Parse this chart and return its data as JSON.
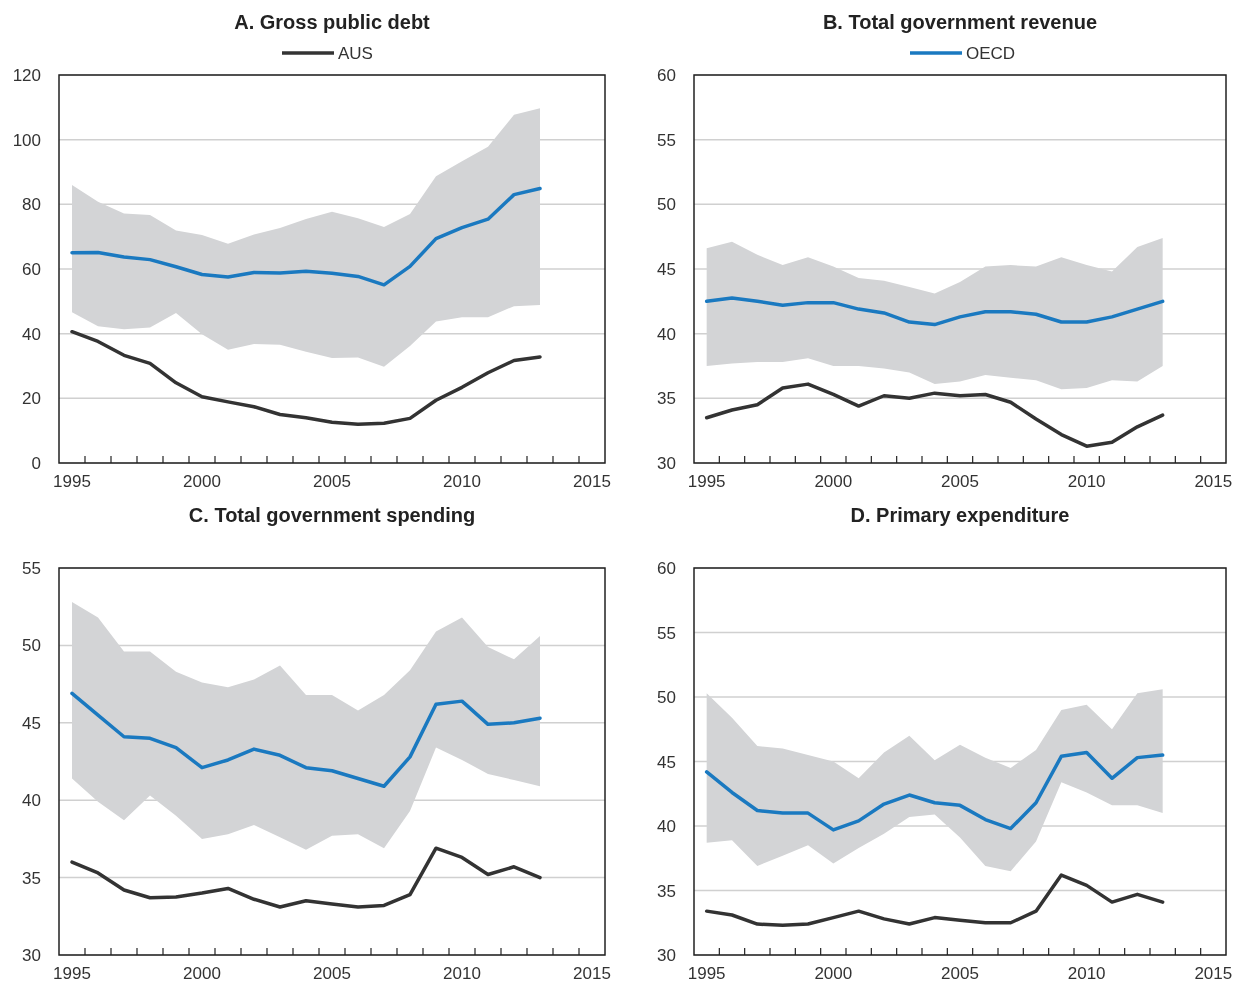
{
  "chart_data": [
    {
      "type": "line",
      "title": "A. Gross public debt",
      "x": [
        1995,
        1996,
        1997,
        1998,
        1999,
        2000,
        2001,
        2002,
        2003,
        2004,
        2005,
        2006,
        2007,
        2008,
        2009,
        2010,
        2011,
        2012,
        2013
      ],
      "xlim": [
        1994.5,
        2015.5
      ],
      "xticks": [
        1995,
        {
          "value": 1995.5,
          "label": null
        },
        {
          "value": 1996.5,
          "label": null
        },
        {
          "value": 1997.5,
          "label": null
        },
        {
          "value": 1998.5,
          "label": null
        },
        {
          "value": 1999.5,
          "label": null
        },
        2000,
        {
          "value": 2000.5,
          "label": null
        },
        {
          "value": 2001.5,
          "label": null
        },
        {
          "value": 2002.5,
          "label": null
        },
        {
          "value": 2003.5,
          "label": null
        },
        {
          "value": 2004.5,
          "label": null
        },
        2005,
        {
          "value": 2005.5,
          "label": null
        },
        {
          "value": 2006.5,
          "label": null
        },
        {
          "value": 2007.5,
          "label": null
        },
        {
          "value": 2008.5,
          "label": null
        },
        {
          "value": 2009.5,
          "label": null
        },
        2010,
        {
          "value": 2010.5,
          "label": null
        },
        {
          "value": 2011.5,
          "label": null
        },
        {
          "value": 2012.5,
          "label": null
        },
        {
          "value": 2013.5,
          "label": null
        },
        {
          "value": 2014.5,
          "label": null
        },
        2015
      ],
      "ylim": [
        0,
        120
      ],
      "yticks": [
        0,
        20,
        40,
        60,
        80,
        100,
        120
      ],
      "grid": "y",
      "legend": "top",
      "series": [
        {
          "color": "#1a79c0",
          "values": [
            65,
            65.1,
            63.7,
            62.9,
            60.7,
            58.3,
            57.5,
            58.9,
            58.8,
            59.3,
            58.7,
            57.7,
            55.1,
            60.8,
            69.4,
            72.8,
            75.4,
            83,
            84.9
          ],
          "lower": [
            46.6,
            42.3,
            41.4,
            41.9,
            46.4,
            39.8,
            35,
            36.8,
            36.6,
            34.4,
            32.5,
            32.6,
            29.8,
            36.2,
            43.8,
            45.1,
            45.1,
            48.5,
            48.9
          ],
          "upper": [
            86,
            80.8,
            77.2,
            76.7,
            71.9,
            70.5,
            67.8,
            70.7,
            72.7,
            75.5,
            77.7,
            75.7,
            73,
            77,
            88.7,
            93.3,
            97.8,
            107.7,
            109.7
          ]
        },
        {
          "name": "AUS",
          "color": "#333333",
          "values": [
            40.6,
            37.6,
            33.3,
            30.8,
            24.8,
            20.5,
            18.9,
            17.4,
            15,
            14,
            12.6,
            12,
            12.3,
            13.8,
            19.4,
            23.4,
            27.9,
            31.7,
            32.8
          ]
        }
      ]
    },
    {
      "type": "line",
      "title": "B. Total government revenue",
      "x": [
        1995,
        1996,
        1997,
        1998,
        1999,
        2000,
        2001,
        2002,
        2003,
        2004,
        2005,
        2006,
        2007,
        2008,
        2009,
        2010,
        2011,
        2012,
        2013
      ],
      "xlim": [
        1994.5,
        2015.5
      ],
      "xticks": [
        1995,
        {
          "value": 1995.5,
          "label": null
        },
        {
          "value": 1996.5,
          "label": null
        },
        {
          "value": 1997.5,
          "label": null
        },
        {
          "value": 1998.5,
          "label": null
        },
        {
          "value": 1999.5,
          "label": null
        },
        2000,
        {
          "value": 2000.5,
          "label": null
        },
        {
          "value": 2001.5,
          "label": null
        },
        {
          "value": 2002.5,
          "label": null
        },
        {
          "value": 2003.5,
          "label": null
        },
        {
          "value": 2004.5,
          "label": null
        },
        2005,
        {
          "value": 2005.5,
          "label": null
        },
        {
          "value": 2006.5,
          "label": null
        },
        {
          "value": 2007.5,
          "label": null
        },
        {
          "value": 2008.5,
          "label": null
        },
        {
          "value": 2009.5,
          "label": null
        },
        2010,
        {
          "value": 2010.5,
          "label": null
        },
        {
          "value": 2011.5,
          "label": null
        },
        {
          "value": 2012.5,
          "label": null
        },
        {
          "value": 2013.5,
          "label": null
        },
        {
          "value": 2014.5,
          "label": null
        },
        2015
      ],
      "ylim": [
        30,
        60
      ],
      "yticks": [
        30,
        35,
        40,
        45,
        50,
        55,
        60
      ],
      "grid": "y",
      "legend": "top",
      "series": [
        {
          "name": "OECD",
          "color": "#1a79c0",
          "values": [
            42.5,
            42.75,
            42.5,
            42.2,
            42.4,
            42.4,
            41.9,
            41.6,
            40.9,
            40.7,
            41.3,
            41.7,
            41.7,
            41.5,
            40.9,
            40.9,
            41.3,
            41.9,
            42.5
          ],
          "lower": [
            37.5,
            37.7,
            37.8,
            37.8,
            38.1,
            37.5,
            37.5,
            37.3,
            37,
            36.1,
            36.3,
            36.8,
            36.6,
            36.4,
            35.7,
            35.8,
            36.4,
            36.3,
            37.5
          ],
          "upper": [
            46.6,
            47.1,
            46.1,
            45.3,
            45.9,
            45.2,
            44.3,
            44.1,
            43.6,
            43.1,
            44,
            45.2,
            45.3,
            45.2,
            45.9,
            45.3,
            44.8,
            46.7,
            47.4
          ]
        },
        {
          "color": "#333333",
          "values": [
            33.5,
            34.1,
            34.5,
            35.8,
            36.1,
            35.3,
            34.4,
            35.2,
            35,
            35.4,
            35.2,
            35.3,
            34.7,
            33.4,
            32.2,
            31.3,
            31.6,
            32.8,
            33.7
          ]
        }
      ]
    },
    {
      "type": "line",
      "title": "C. Total government spending",
      "x": [
        1995,
        1996,
        1997,
        1998,
        1999,
        2000,
        2001,
        2002,
        2003,
        2004,
        2005,
        2006,
        2007,
        2008,
        2009,
        2010,
        2011,
        2012,
        2013
      ],
      "xlim": [
        1994.5,
        2015.5
      ],
      "xticks": [
        1995,
        {
          "value": 1995.5,
          "label": null
        },
        {
          "value": 1996.5,
          "label": null
        },
        {
          "value": 1997.5,
          "label": null
        },
        {
          "value": 1998.5,
          "label": null
        },
        {
          "value": 1999.5,
          "label": null
        },
        2000,
        {
          "value": 2000.5,
          "label": null
        },
        {
          "value": 2001.5,
          "label": null
        },
        {
          "value": 2002.5,
          "label": null
        },
        {
          "value": 2003.5,
          "label": null
        },
        {
          "value": 2004.5,
          "label": null
        },
        2005,
        {
          "value": 2005.5,
          "label": null
        },
        {
          "value": 2006.5,
          "label": null
        },
        {
          "value": 2007.5,
          "label": null
        },
        {
          "value": 2008.5,
          "label": null
        },
        {
          "value": 2009.5,
          "label": null
        },
        2010,
        {
          "value": 2010.5,
          "label": null
        },
        {
          "value": 2011.5,
          "label": null
        },
        {
          "value": 2012.5,
          "label": null
        },
        {
          "value": 2013.5,
          "label": null
        },
        {
          "value": 2014.5,
          "label": null
        },
        2015
      ],
      "ylim": [
        30,
        55
      ],
      "yticks": [
        30,
        35,
        40,
        45,
        50,
        55
      ],
      "grid": "y",
      "series": [
        {
          "color": "#1a79c0",
          "values": [
            46.9,
            45.5,
            44.1,
            44,
            43.4,
            42.1,
            42.6,
            43.3,
            42.9,
            42.1,
            41.9,
            41.4,
            40.9,
            42.8,
            46.2,
            46.4,
            44.9,
            45,
            45.3
          ],
          "lower": [
            41.4,
            39.9,
            38.7,
            40.3,
            39,
            37.5,
            37.8,
            38.4,
            37.6,
            36.8,
            37.7,
            37.8,
            36.9,
            39.3,
            43.4,
            42.6,
            41.7,
            41.3,
            40.9
          ],
          "upper": [
            52.8,
            51.8,
            49.6,
            49.6,
            48.3,
            47.6,
            47.3,
            47.8,
            48.7,
            46.8,
            46.8,
            45.8,
            46.8,
            48.4,
            50.9,
            51.8,
            49.9,
            49.1,
            50.6
          ]
        },
        {
          "color": "#333333",
          "values": [
            36,
            35.3,
            34.2,
            33.7,
            33.75,
            34,
            34.3,
            33.6,
            33.1,
            33.5,
            33.3,
            33.1,
            33.2,
            33.9,
            36.9,
            36.3,
            35.2,
            35.7,
            35
          ]
        }
      ]
    },
    {
      "type": "line",
      "title": "D. Primary expenditure",
      "x": [
        1995,
        1996,
        1997,
        1998,
        1999,
        2000,
        2001,
        2002,
        2003,
        2004,
        2005,
        2006,
        2007,
        2008,
        2009,
        2010,
        2011,
        2012,
        2013
      ],
      "xlim": [
        1994.5,
        2015.5
      ],
      "xticks": [
        1995,
        {
          "value": 1995.5,
          "label": null
        },
        {
          "value": 1996.5,
          "label": null
        },
        {
          "value": 1997.5,
          "label": null
        },
        {
          "value": 1998.5,
          "label": null
        },
        {
          "value": 1999.5,
          "label": null
        },
        2000,
        {
          "value": 2000.5,
          "label": null
        },
        {
          "value": 2001.5,
          "label": null
        },
        {
          "value": 2002.5,
          "label": null
        },
        {
          "value": 2003.5,
          "label": null
        },
        {
          "value": 2004.5,
          "label": null
        },
        2005,
        {
          "value": 2005.5,
          "label": null
        },
        {
          "value": 2006.5,
          "label": null
        },
        {
          "value": 2007.5,
          "label": null
        },
        {
          "value": 2008.5,
          "label": null
        },
        {
          "value": 2009.5,
          "label": null
        },
        2010,
        {
          "value": 2010.5,
          "label": null
        },
        {
          "value": 2011.5,
          "label": null
        },
        {
          "value": 2012.5,
          "label": null
        },
        {
          "value": 2013.5,
          "label": null
        },
        {
          "value": 2014.5,
          "label": null
        },
        2015
      ],
      "ylim": [
        30,
        60
      ],
      "yticks": [
        30,
        35,
        40,
        45,
        50,
        55,
        60
      ],
      "grid": "y",
      "series": [
        {
          "color": "#1a79c0",
          "values": [
            44.2,
            42.6,
            41.2,
            41,
            41,
            39.7,
            40.4,
            41.7,
            42.4,
            41.8,
            41.6,
            40.5,
            39.8,
            41.8,
            45.4,
            45.7,
            43.7,
            45.3,
            45.5
          ],
          "lower": [
            38.7,
            38.9,
            36.9,
            37.7,
            38.5,
            37.1,
            38.3,
            39.4,
            40.7,
            40.9,
            39.1,
            36.9,
            36.5,
            38.8,
            43.4,
            42.6,
            41.6,
            41.6,
            41
          ],
          "upper": [
            50.3,
            48.4,
            46.2,
            46,
            45.5,
            45,
            43.7,
            45.7,
            47,
            45.1,
            46.3,
            45.3,
            44.5,
            45.9,
            49,
            49.4,
            47.5,
            50.3,
            50.6
          ]
        },
        {
          "color": "#333333",
          "values": [
            33.4,
            33.1,
            32.4,
            32.3,
            32.4,
            32.9,
            33.4,
            32.8,
            32.4,
            32.9,
            32.7,
            32.5,
            32.5,
            33.4,
            36.2,
            35.4,
            34.1,
            34.7,
            34.1
          ]
        }
      ]
    }
  ]
}
